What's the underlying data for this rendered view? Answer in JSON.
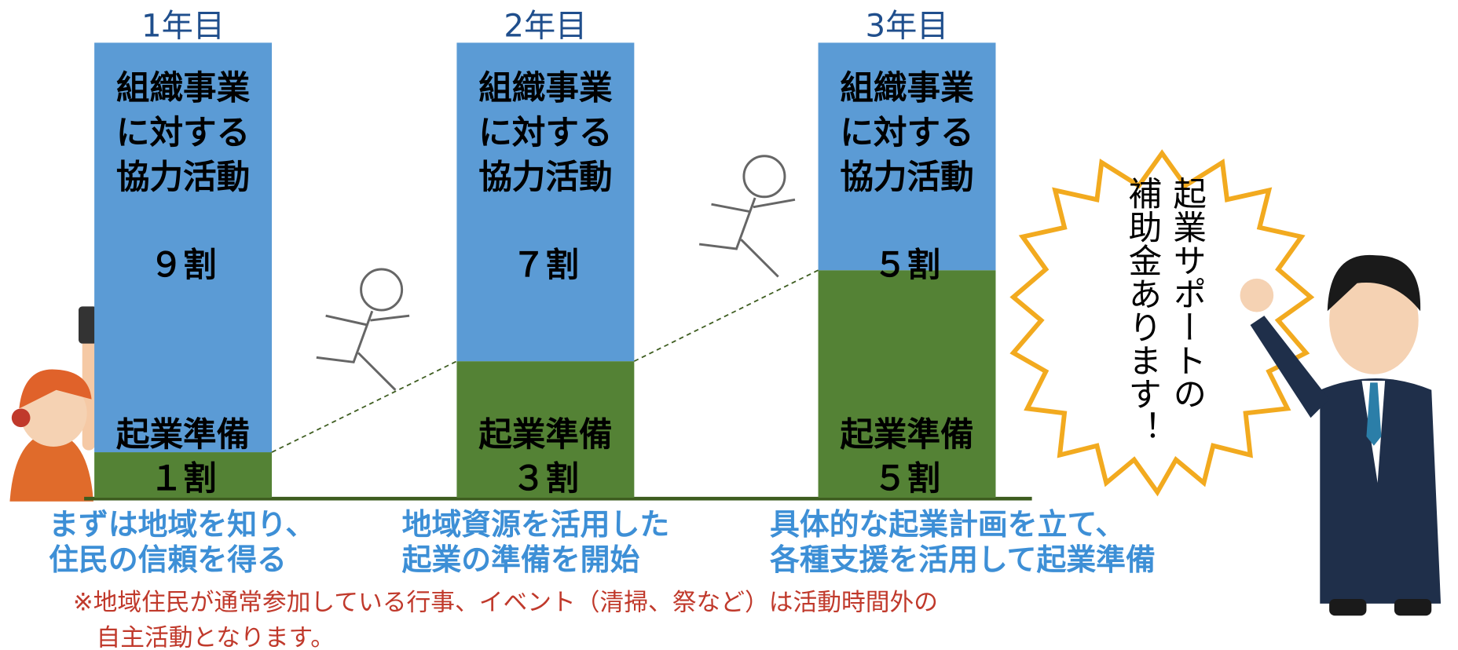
{
  "chart_data": {
    "type": "stacked-bar",
    "categories": [
      "1年目",
      "2年目",
      "3年目"
    ],
    "series": [
      {
        "name": "起業準備",
        "color": "#548235",
        "values": [
          1,
          3,
          5
        ],
        "value_labels": [
          "１割",
          "３割",
          "５割"
        ]
      },
      {
        "name": "組織事業に対する協力活動",
        "color": "#5b9bd5",
        "values": [
          9,
          7,
          5
        ],
        "value_labels": [
          "９割",
          "７割",
          "５割"
        ]
      }
    ],
    "ylim": [
      0,
      10
    ]
  },
  "captions": [
    [
      "まずは地域を知り、",
      "住民の信頼を得る"
    ],
    [
      "地域資源を活用した",
      "起業の準備を開始"
    ],
    [
      "具体的な起業計画を立て、",
      "各種支援を活用して起業準備"
    ]
  ],
  "callout": [
    "起業サポートの",
    "補助金あります！"
  ],
  "note": [
    "※地域住民が通常参加している行事、イベント（清掃、祭など）は活動時間外の",
    "自主活動となります。"
  ]
}
